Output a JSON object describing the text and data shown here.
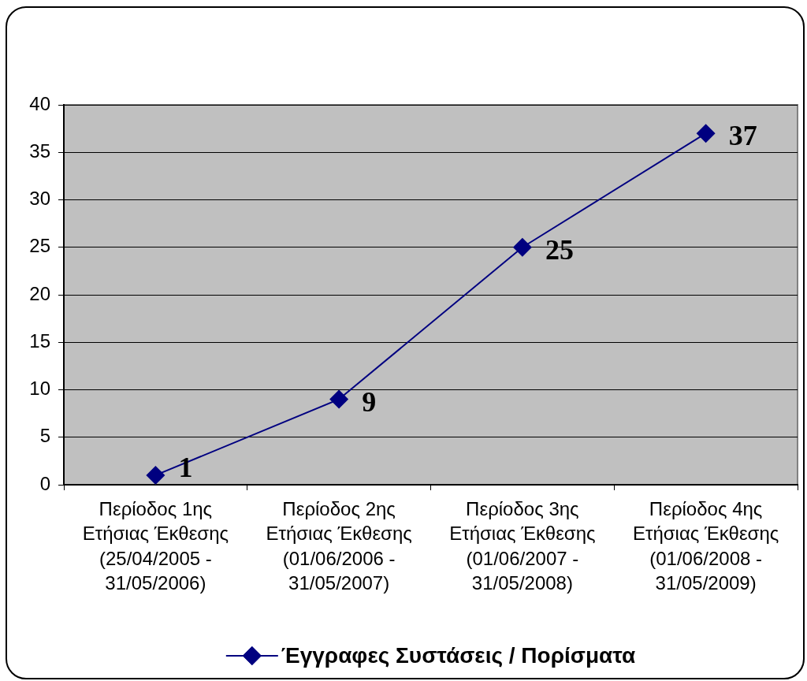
{
  "chart_data": {
    "type": "line",
    "categories": [
      "Περίοδος 1ης Ετήσιας Έκθεσης (25/04/2005 - 31/05/2006)",
      "Περίοδος 2ης Ετήσιας Έκθεσης (01/06/2006 - 31/05/2007)",
      "Περίοδος 3ης Ετήσιας Έκθεσης (01/06/2007 - 31/05/2008)",
      "Περίοδος 4ης Ετήσιας Έκθεσης (01/06/2008 - 31/05/2009)"
    ],
    "series": [
      {
        "name": "Έγγραφες Συστάσεις / Πορίσματα",
        "color": "#000080",
        "values": [
          1,
          9,
          25,
          37
        ]
      }
    ],
    "ylim": [
      0,
      40
    ],
    "yticks": [
      0,
      5,
      10,
      15,
      20,
      25,
      30,
      35,
      40
    ],
    "grid": "y",
    "legend": "bottom",
    "marker": "diamond",
    "data_labels": true
  }
}
